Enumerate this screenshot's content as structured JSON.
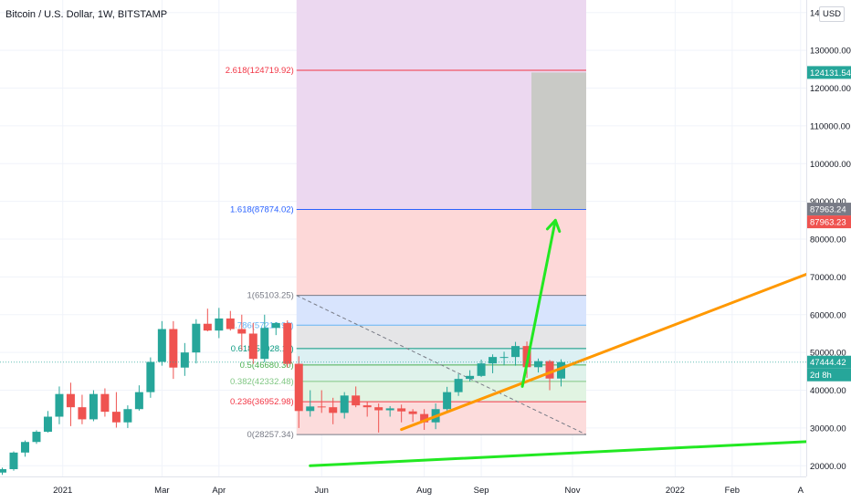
{
  "header": {
    "title": "Bitcoin / U.S. Dollar, 1W, BITSTAMP",
    "currency": "USD"
  },
  "colors": {
    "up": "#26a69a",
    "down": "#ef5350",
    "orange_line": "#ff9800",
    "green_line": "#22e822",
    "grid": "#f0f3fa"
  },
  "chart_data": {
    "type": "candlestick",
    "title": "Bitcoin / U.S. Dollar, 1W, BITSTAMP",
    "y_scale": "linear",
    "ylim": [
      17500,
      146000
    ],
    "y_ticks": [
      "20000.00",
      "30000.00",
      "40000.00",
      "50000.00",
      "60000.00",
      "70000.00",
      "80000.00",
      "90000.00",
      "100000.00",
      "110000.00",
      "120000.00",
      "130000.00",
      "14"
    ],
    "y_tick_values": [
      20000,
      30000,
      40000,
      50000,
      60000,
      70000,
      80000,
      90000,
      100000,
      110000,
      120000,
      130000,
      140000
    ],
    "x_labels": [
      "2021",
      "Mar",
      "Apr",
      "Jun",
      "Aug",
      "Sep",
      "Nov",
      "2022",
      "Feb",
      "A"
    ],
    "x_label_weeks": [
      5.3,
      14,
      19,
      28,
      37,
      42,
      50,
      59,
      64,
      70
    ],
    "xlim": [
      0,
      70.5
    ],
    "price_tags": [
      {
        "text": "124131.54",
        "price": 124131.54,
        "color": "#26a69a"
      },
      {
        "text": "87963.24",
        "price": 87963.24,
        "color": "#787b86"
      },
      {
        "text": "87963.23",
        "price": 87963.23,
        "color": "#ef5350",
        "offset": 1
      },
      {
        "text": "47444.42",
        "price": 47444.42,
        "color": "#26a69a"
      },
      {
        "text": "2d 8h",
        "price": 47444.42,
        "color": "#26a69a",
        "offset": 1
      }
    ],
    "candles": [
      {
        "w": 0,
        "o": 18200,
        "h": 19500,
        "l": 17600,
        "c": 19100
      },
      {
        "w": 1,
        "o": 19100,
        "h": 23800,
        "l": 18700,
        "c": 23500
      },
      {
        "w": 2,
        "o": 23500,
        "h": 26700,
        "l": 22400,
        "c": 26300
      },
      {
        "w": 3,
        "o": 26300,
        "h": 29400,
        "l": 25800,
        "c": 29000
      },
      {
        "w": 4,
        "o": 29000,
        "h": 34500,
        "l": 28800,
        "c": 33000
      },
      {
        "w": 5,
        "o": 33000,
        "h": 41000,
        "l": 31000,
        "c": 39000
      },
      {
        "w": 6,
        "o": 39000,
        "h": 42000,
        "l": 30500,
        "c": 35500
      },
      {
        "w": 7,
        "o": 35500,
        "h": 38800,
        "l": 31000,
        "c": 32300
      },
      {
        "w": 8,
        "o": 32300,
        "h": 40000,
        "l": 31800,
        "c": 39000
      },
      {
        "w": 9,
        "o": 39000,
        "h": 40500,
        "l": 33000,
        "c": 34300
      },
      {
        "w": 10,
        "o": 34300,
        "h": 39500,
        "l": 30100,
        "c": 31500
      },
      {
        "w": 11,
        "o": 31500,
        "h": 36000,
        "l": 30000,
        "c": 35000
      },
      {
        "w": 12,
        "o": 35000,
        "h": 41300,
        "l": 34600,
        "c": 39500
      },
      {
        "w": 13,
        "o": 39500,
        "h": 48700,
        "l": 38000,
        "c": 47500
      },
      {
        "w": 14,
        "o": 47500,
        "h": 58300,
        "l": 46500,
        "c": 56200
      },
      {
        "w": 15,
        "o": 56200,
        "h": 58300,
        "l": 43000,
        "c": 46000
      },
      {
        "w": 16,
        "o": 46000,
        "h": 52500,
        "l": 43800,
        "c": 50000
      },
      {
        "w": 17,
        "o": 50000,
        "h": 58800,
        "l": 47100,
        "c": 57600
      },
      {
        "w": 18,
        "o": 57600,
        "h": 61600,
        "l": 55600,
        "c": 55800
      },
      {
        "w": 19,
        "o": 55800,
        "h": 61800,
        "l": 53800,
        "c": 59000
      },
      {
        "w": 20,
        "o": 59000,
        "h": 61000,
        "l": 55800,
        "c": 56200
      },
      {
        "w": 21,
        "o": 56200,
        "h": 60000,
        "l": 50600,
        "c": 55000
      },
      {
        "w": 22,
        "o": 55000,
        "h": 57800,
        "l": 47000,
        "c": 48300
      },
      {
        "w": 23,
        "o": 48300,
        "h": 60000,
        "l": 47400,
        "c": 56500
      },
      {
        "w": 24,
        "o": 56500,
        "h": 58000,
        "l": 54600,
        "c": 57800
      },
      {
        "w": 25,
        "o": 57800,
        "h": 58500,
        "l": 46000,
        "c": 47000
      },
      {
        "w": 26,
        "o": 47000,
        "h": 49000,
        "l": 30000,
        "c": 34500
      },
      {
        "w": 27,
        "o": 34500,
        "h": 40000,
        "l": 33000,
        "c": 35700
      },
      {
        "w": 28,
        "o": 35700,
        "h": 40000,
        "l": 34000,
        "c": 35500
      },
      {
        "w": 29,
        "o": 35500,
        "h": 38000,
        "l": 31000,
        "c": 34000
      },
      {
        "w": 30,
        "o": 34000,
        "h": 39500,
        "l": 32500,
        "c": 38600
      },
      {
        "w": 31,
        "o": 38600,
        "h": 41000,
        "l": 35500,
        "c": 36000
      },
      {
        "w": 32,
        "o": 36000,
        "h": 37000,
        "l": 33000,
        "c": 35500
      },
      {
        "w": 33,
        "o": 35500,
        "h": 36500,
        "l": 28800,
        "c": 34700
      },
      {
        "w": 34,
        "o": 34700,
        "h": 35800,
        "l": 33000,
        "c": 35200
      },
      {
        "w": 35,
        "o": 35200,
        "h": 36200,
        "l": 31500,
        "c": 34400
      },
      {
        "w": 36,
        "o": 34400,
        "h": 35000,
        "l": 31600,
        "c": 33700
      },
      {
        "w": 37,
        "o": 33700,
        "h": 35000,
        "l": 29500,
        "c": 31500
      },
      {
        "w": 38,
        "o": 31500,
        "h": 36500,
        "l": 29700,
        "c": 35000
      },
      {
        "w": 39,
        "o": 35000,
        "h": 40900,
        "l": 34100,
        "c": 39500
      },
      {
        "w": 40,
        "o": 39500,
        "h": 44300,
        "l": 38500,
        "c": 43000
      },
      {
        "w": 41,
        "o": 43000,
        "h": 45300,
        "l": 42300,
        "c": 43800
      },
      {
        "w": 42,
        "o": 43800,
        "h": 48100,
        "l": 43500,
        "c": 47100
      },
      {
        "w": 43,
        "o": 47100,
        "h": 49500,
        "l": 44500,
        "c": 48800
      },
      {
        "w": 44,
        "o": 48800,
        "h": 50200,
        "l": 46600,
        "c": 48800
      },
      {
        "w": 45,
        "o": 48800,
        "h": 52800,
        "l": 46500,
        "c": 51700
      },
      {
        "w": 46,
        "o": 51700,
        "h": 52900,
        "l": 43300,
        "c": 46100
      },
      {
        "w": 47,
        "o": 46100,
        "h": 48400,
        "l": 44700,
        "c": 47700
      },
      {
        "w": 48,
        "o": 47700,
        "h": 48000,
        "l": 40000,
        "c": 43100
      },
      {
        "w": 49,
        "o": 43100,
        "h": 48200,
        "l": 41000,
        "c": 47444
      }
    ],
    "fibonacci": {
      "x_start": 25.8,
      "x_end": 51.2,
      "levels": [
        {
          "label": "0(28257.34)",
          "price": 28257.34,
          "color": "#787b86",
          "fill": "#fcdcdc"
        },
        {
          "label": "0.236(36952.98)",
          "price": 36952.98,
          "color": "#f23645",
          "fill": "#e8f5e9"
        },
        {
          "label": "0.382(42332.48)",
          "price": 42332.48,
          "color": "#81c784",
          "fill": "#e1f4e2"
        },
        {
          "label": "0.5(46680.30)",
          "price": 46680.3,
          "color": "#4caf50",
          "fill": "#dff2eb"
        },
        {
          "label": "0.618(51028.11)",
          "price": 51028.11,
          "color": "#089981",
          "fill": "#dcf0f3"
        },
        {
          "label": "0.786(57219.92)",
          "price": 57219.92,
          "color": "#64b5f6",
          "fill": "#e5e5e7"
        },
        {
          "label": "1(65103.25)",
          "price": 65103.25,
          "color": "#787b86",
          "fill": "#d8e4fd"
        },
        {
          "label": "1.618(87874.02)",
          "price": 87874.02,
          "color": "#2962ff",
          "fill": "#fdd8d8"
        },
        {
          "label": "2.618(124719.92)",
          "price": 124719.92,
          "color": "#f23645",
          "fill": "#ecd8f0"
        }
      ]
    },
    "trend_dashed": [
      [
        25.8,
        65103.25
      ],
      [
        51.2,
        28257.34
      ]
    ],
    "orange_line": [
      [
        35,
        29600
      ],
      [
        70.5,
        70700
      ]
    ],
    "green_line": [
      [
        27,
        20000
      ],
      [
        70.5,
        26400
      ]
    ],
    "green_arrow": [
      [
        45.6,
        41000
      ],
      [
        48.5,
        85000
      ]
    ],
    "target_box": [
      [
        46.4,
        124131.54
      ],
      [
        51.2,
        87963.24
      ]
    ]
  }
}
